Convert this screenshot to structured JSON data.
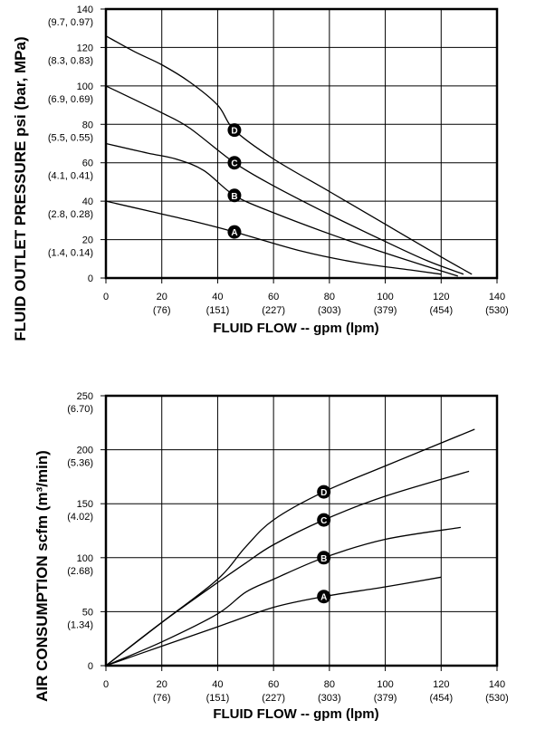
{
  "chart_data": [
    {
      "type": "line",
      "ylabel": "FLUID OUTLET PRESSURE psi (bar, MPa)",
      "xlabel": "FLUID FLOW -- gpm (lpm)",
      "xlim": [
        0,
        140
      ],
      "ylim": [
        0,
        140
      ],
      "x_ticks": [
        {
          "value": 0,
          "label": "0",
          "sub": ""
        },
        {
          "value": 20,
          "label": "20",
          "sub": "(76)"
        },
        {
          "value": 40,
          "label": "40",
          "sub": "(151)"
        },
        {
          "value": 60,
          "label": "60",
          "sub": "(227)"
        },
        {
          "value": 80,
          "label": "80",
          "sub": "(303)"
        },
        {
          "value": 100,
          "label": "100",
          "sub": "(379)"
        },
        {
          "value": 120,
          "label": "120",
          "sub": "(454)"
        },
        {
          "value": 140,
          "label": "140",
          "sub": "(530)"
        }
      ],
      "y_ticks": [
        {
          "value": 0,
          "label": "0",
          "sub": ""
        },
        {
          "value": 20,
          "label": "20",
          "sub": "(1.4, 0.14)"
        },
        {
          "value": 40,
          "label": "40",
          "sub": "(2.8, 0.28)"
        },
        {
          "value": 60,
          "label": "60",
          "sub": "(4.1, 0.41)"
        },
        {
          "value": 80,
          "label": "80",
          "sub": "(5.5, 0.55)"
        },
        {
          "value": 100,
          "label": "100",
          "sub": "(6.9, 0.69)"
        },
        {
          "value": 120,
          "label": "120",
          "sub": "(8.3, 0.83)"
        },
        {
          "value": 140,
          "label": "140",
          "sub": "(9.7, 0.97)"
        }
      ],
      "grid": true,
      "series": [
        {
          "name": "A",
          "label_at": [
            46,
            24
          ],
          "points": [
            [
              0,
              40
            ],
            [
              15,
              35
            ],
            [
              30,
              30
            ],
            [
              46,
              24
            ],
            [
              70,
              14
            ],
            [
              90,
              8
            ],
            [
              110,
              4
            ],
            [
              120,
              2
            ]
          ]
        },
        {
          "name": "B",
          "label_at": [
            46,
            43
          ],
          "points": [
            [
              0,
              70
            ],
            [
              15,
              65
            ],
            [
              25,
              62
            ],
            [
              35,
              56
            ],
            [
              46,
              43
            ],
            [
              60,
              34
            ],
            [
              80,
              23
            ],
            [
              100,
              13
            ],
            [
              115,
              6
            ],
            [
              126,
              1
            ]
          ]
        },
        {
          "name": "C",
          "label_at": [
            46,
            60
          ],
          "points": [
            [
              0,
              100
            ],
            [
              10,
              93
            ],
            [
              20,
              86
            ],
            [
              30,
              78
            ],
            [
              46,
              60
            ],
            [
              60,
              48
            ],
            [
              80,
              33
            ],
            [
              100,
              19
            ],
            [
              115,
              9
            ],
            [
              128,
              2
            ]
          ]
        },
        {
          "name": "D",
          "label_at": [
            46,
            77
          ],
          "points": [
            [
              0,
              126
            ],
            [
              10,
              118
            ],
            [
              20,
              111
            ],
            [
              30,
              102
            ],
            [
              40,
              90
            ],
            [
              46,
              77
            ],
            [
              60,
              62
            ],
            [
              80,
              45
            ],
            [
              100,
              28
            ],
            [
              120,
              11
            ],
            [
              131,
              2
            ]
          ]
        }
      ]
    },
    {
      "type": "line",
      "ylabel": "AIR CONSUMPTION scfm (m³/min)",
      "xlabel": "FLUID FLOW -- gpm (lpm)",
      "xlim": [
        0,
        140
      ],
      "ylim": [
        0,
        250
      ],
      "x_ticks": [
        {
          "value": 0,
          "label": "0",
          "sub": ""
        },
        {
          "value": 20,
          "label": "20",
          "sub": "(76)"
        },
        {
          "value": 40,
          "label": "40",
          "sub": "(151)"
        },
        {
          "value": 60,
          "label": "60",
          "sub": "(227)"
        },
        {
          "value": 80,
          "label": "80",
          "sub": "(303)"
        },
        {
          "value": 100,
          "label": "100",
          "sub": "(379)"
        },
        {
          "value": 120,
          "label": "120",
          "sub": "(454)"
        },
        {
          "value": 140,
          "label": "140",
          "sub": "(530)"
        }
      ],
      "y_ticks": [
        {
          "value": 0,
          "label": "0",
          "sub": ""
        },
        {
          "value": 50,
          "label": "50",
          "sub": "(1.34)"
        },
        {
          "value": 100,
          "label": "100",
          "sub": "(2.68)"
        },
        {
          "value": 150,
          "label": "150",
          "sub": "(4.02)"
        },
        {
          "value": 200,
          "label": "200",
          "sub": "(5.36)"
        },
        {
          "value": 250,
          "label": "250",
          "sub": "(6.70)"
        }
      ],
      "grid": true,
      "series": [
        {
          "name": "A",
          "label_at": [
            78,
            64
          ],
          "points": [
            [
              0,
              0
            ],
            [
              20,
              18
            ],
            [
              40,
              36
            ],
            [
              60,
              54
            ],
            [
              78,
              64
            ],
            [
              100,
              73
            ],
            [
              120,
              82
            ]
          ]
        },
        {
          "name": "B",
          "label_at": [
            78,
            100
          ],
          "points": [
            [
              0,
              0
            ],
            [
              20,
              22
            ],
            [
              40,
              48
            ],
            [
              50,
              68
            ],
            [
              60,
              80
            ],
            [
              78,
              100
            ],
            [
              100,
              117
            ],
            [
              127,
              128
            ]
          ]
        },
        {
          "name": "C",
          "label_at": [
            78,
            135
          ],
          "points": [
            [
              0,
              0
            ],
            [
              20,
              40
            ],
            [
              40,
              77
            ],
            [
              50,
              95
            ],
            [
              60,
              112
            ],
            [
              78,
              135
            ],
            [
              100,
              157
            ],
            [
              130,
              180
            ]
          ]
        },
        {
          "name": "D",
          "label_at": [
            78,
            161
          ],
          "points": [
            [
              0,
              0
            ],
            [
              20,
              40
            ],
            [
              40,
              80
            ],
            [
              50,
              110
            ],
            [
              60,
              135
            ],
            [
              78,
              161
            ],
            [
              100,
              185
            ],
            [
              132,
              219
            ]
          ]
        }
      ]
    }
  ]
}
